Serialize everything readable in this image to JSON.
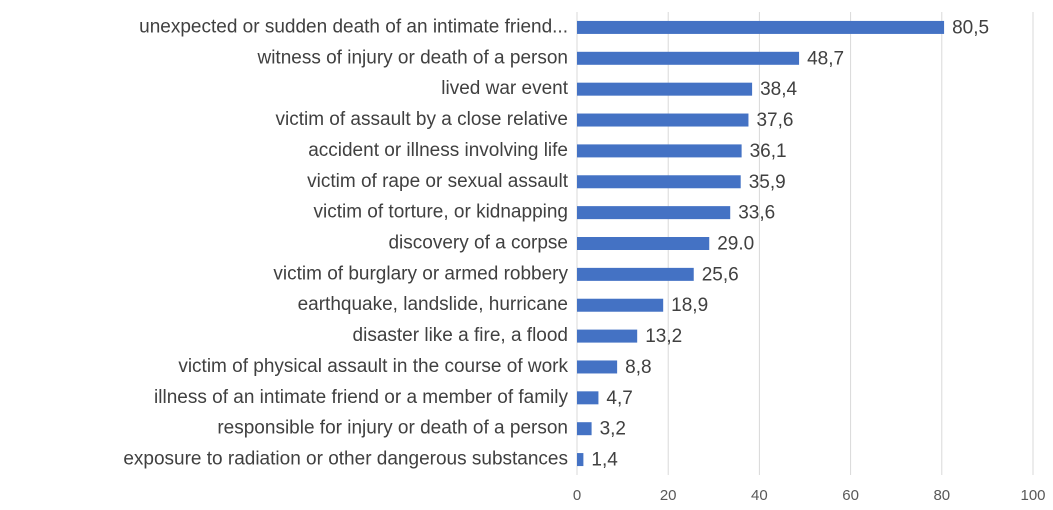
{
  "chart_data": {
    "type": "barh",
    "categories": [
      "unexpected or sudden death of an intimate friend...",
      "witness of injury or death of a person",
      "lived war event",
      "victim of assault by a close relative",
      "accident or illness involving life",
      "victim of rape or sexual assault",
      "victim of torture, or kidnapping",
      "discovery of a corpse",
      "victim of burglary or armed robbery",
      "earthquake, landslide, hurricane",
      "disaster like a fire, a flood",
      "victim of physical assault in the course of work",
      "illness of an intimate friend or a member of family",
      "responsible for injury or death of a person",
      "exposure to radiation or other dangerous substances"
    ],
    "values": [
      80.5,
      48.7,
      38.4,
      37.6,
      36.1,
      35.9,
      33.6,
      29.0,
      25.6,
      18.9,
      13.2,
      8.8,
      4.7,
      3.2,
      1.4
    ],
    "value_labels": [
      "80,5",
      "48,7",
      "38,4",
      "37,6",
      "36,1",
      "35,9",
      "33,6",
      "29.0",
      "25,6",
      "18,9",
      "13,2",
      "8,8",
      "4,7",
      "3,2",
      "1,4"
    ],
    "color": "#4472c4",
    "xlim": [
      0,
      100
    ],
    "xticks": [
      0,
      20,
      40,
      60,
      80,
      100
    ],
    "grid": true
  }
}
